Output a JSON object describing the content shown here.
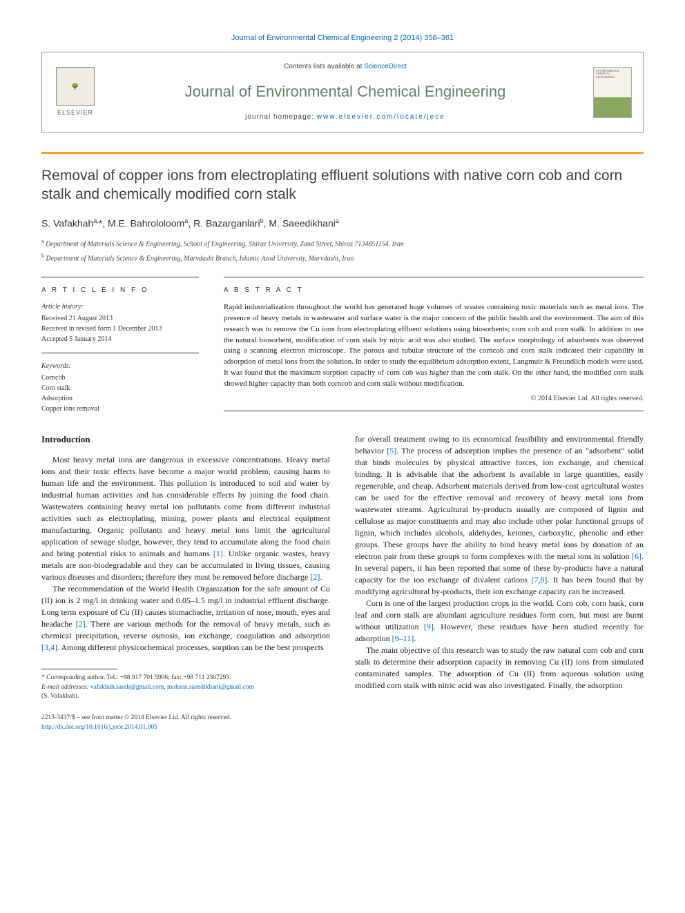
{
  "citation": "Journal of Environmental Chemical Engineering 2 (2014) 356–361",
  "header": {
    "contents_prefix": "Contents lists available at ",
    "contents_link": "ScienceDirect",
    "journal_name": "Journal of Environmental Chemical Engineering",
    "homepage_prefix": "journal homepage: ",
    "homepage_url": "www.elsevier.com/locate/jece",
    "publisher_label": "ELSEVIER"
  },
  "title": "Removal of copper ions from electroplating effluent solutions with native corn cob and corn stalk and chemically modified corn stalk",
  "authors_html": "S. Vafakhah<sup>a,</sup><span class='ast'>*</span>, M.E. Bahrololoom<sup>a</sup>, R. Bazarganlari<sup>b</sup>, M. Saeedikhani<sup>a</sup>",
  "affiliations": [
    {
      "sup": "a",
      "text": "Department of Materials Science & Engineering, School of Engineering, Shiraz University, Zand Street, Shiraz 7134851154, Iran"
    },
    {
      "sup": "b",
      "text": "Department of Materials Science & Engineering, Marvdasht Branch, Islamic Azad University, Marvdasht, Iran"
    }
  ],
  "article_info": {
    "label": "A R T I C L E   I N F O",
    "history_label": "Article history:",
    "history": [
      "Received 21 August 2013",
      "Received in revised form 1 December 2013",
      "Accepted 5 January 2014"
    ],
    "keywords_label": "Keywords:",
    "keywords": [
      "Corncob",
      "Corn stalk",
      "Adsorption",
      "Copper ions removal"
    ]
  },
  "abstract": {
    "label": "A B S T R A C T",
    "text": "Rapid industrialization throughout the world has generated huge volumes of wastes containing toxic materials such as metal ions. The presence of heavy metals in wastewater and surface water is the major concern of the public health and the environment. The aim of this research was to remove the Cu ions from electroplating effluent solutions using biosorbents; corn cob and corn stalk. In addition to use the natural biosorbent, modification of corn stalk by nitric acid was also studied. The surface morphology of adsorbents was observed using a scanning electron microscope. The porous and tubular structure of the corncob and corn stalk indicated their capability in adsorption of metal ions from the solution. In order to study the equilibrium adsorption extent, Langmuir & Freundlich models were used. It was found that the maximum sorption capacity of corn cob was higher than the corn stalk. On the other hand, the modified corn stalk showed higher capacity than both corncob and corn stalk without modification.",
    "copyright": "© 2014 Elsevier Ltd. All rights reserved."
  },
  "introduction": {
    "heading": "Introduction",
    "p1": "Most heavy metal ions are dangerous in excessive concentrations. Heavy metal ions and their toxic effects have become a major world problem, causing harm to human life and the environment. This pollution is introduced to soil and water by industrial human activities and has considerable effects by joining the food chain. Wastewaters containing heavy metal ion pollutants come from different industrial activities such as electroplating, mining, power plants and electrical equipment manufacturing. Organic pollutants and heavy metal ions limit the agricultural application of sewage sludge, however, they tend to accumulate along the food chain and bring potential risks to animals and humans ",
    "r1": "[1]",
    "p1b": ". Unlike organic wastes, heavy metals are non-biodegradable and they can be accumulated in living tissues, causing various diseases and disorders; therefore they must be removed before discharge ",
    "r2": "[2]",
    "p1c": ".",
    "p2": "The recommendation of the World Health Organization for the safe amount of Cu (II) ion is 2 mg/l in drinking water and 0.05–1.5 mg/l in industrial effluent discharge. Long term exposure of Cu (II) causes stomachache, irritation of nose, mouth, eyes and headache ",
    "r2b": "[2]",
    "p2b": ". There are various methods for the removal of heavy metals, such as chemical precipitation, reverse osmosis, ion exchange, coagulation and adsorption ",
    "r34": "[3,4]",
    "p2c": ". Among different physicochemical processes, sorption can be the best prospects",
    "p3a": "for overall treatment owing to its economical feasibility and environmental friendly behavior ",
    "r5": "[5]",
    "p3b": ". The process of adsorption implies the presence of an \"adsorbent\" solid that binds molecules by physical attractive forces, ion exchange, and chemical binding. It is advisable that the adsorbent is available in large quantities, easily regenerable, and cheap. Adsorbent materials derived from low-cost agricultural wastes can be used for the effective removal and recovery of heavy metal ions from wastewater streams. Agricultural by-products usually are composed of lignin and cellulose as major constituents and may also include other polar functional groups of lignin, which includes alcohols, aldehydes, ketones, carboxylic, phenolic and ether groups. These groups have the ability to bind heavy metal ions by donation of an electron pair from these groups to form complexes with the metal ions in solution ",
    "r6": "[6]",
    "p3c": ". In several papers, it has been reported that some of these by-products have a natural capacity for the ion exchange of divalent cations ",
    "r78": "[7,8]",
    "p3d": ". It has been found that by modifying agricultural by-products, their ion exchange capacity can be increased.",
    "p4a": "Corn is one of the largest production crops in the world. Corn cob, corn husk, corn leaf and corn stalk are abundant agriculture residues form corn, but most are burnt without utilization ",
    "r9": "[9]",
    "p4b": ". However, these residues have been studied recently for adsorption ",
    "r911": "[9–11]",
    "p4c": ".",
    "p5": "The main objective of this research was to study the raw natural corn cob and corn stalk to determine their adsorption capacity in removing Cu (II) ions from simulated contaminated samples. The adsorption of Cu (II) from aqueous solution using modified corn stalk with nitric acid was also investigated. Finally, the adsorption"
  },
  "footnote": {
    "corr": "* Corresponding author. Tel.: +98 917 701 5906; fax: +98 711 2307293.",
    "email_label": "E-mail addresses: ",
    "email1": "vafakhah.sareh@gmail.com",
    "email_sep": ", ",
    "email2": "mohsen.saeedikhani@gmail.com",
    "name": "(S. Vafakhah)."
  },
  "bottom": {
    "line1": "2213-3437/$ – see front matter © 2014 Elsevier Ltd. All rights reserved.",
    "doi": "http://dx.doi.org/10.1016/j.jece.2014.01.005"
  },
  "colors": {
    "link": "#0066cc",
    "journal": "#6b7a6e",
    "gold": "#ff9e1b"
  }
}
